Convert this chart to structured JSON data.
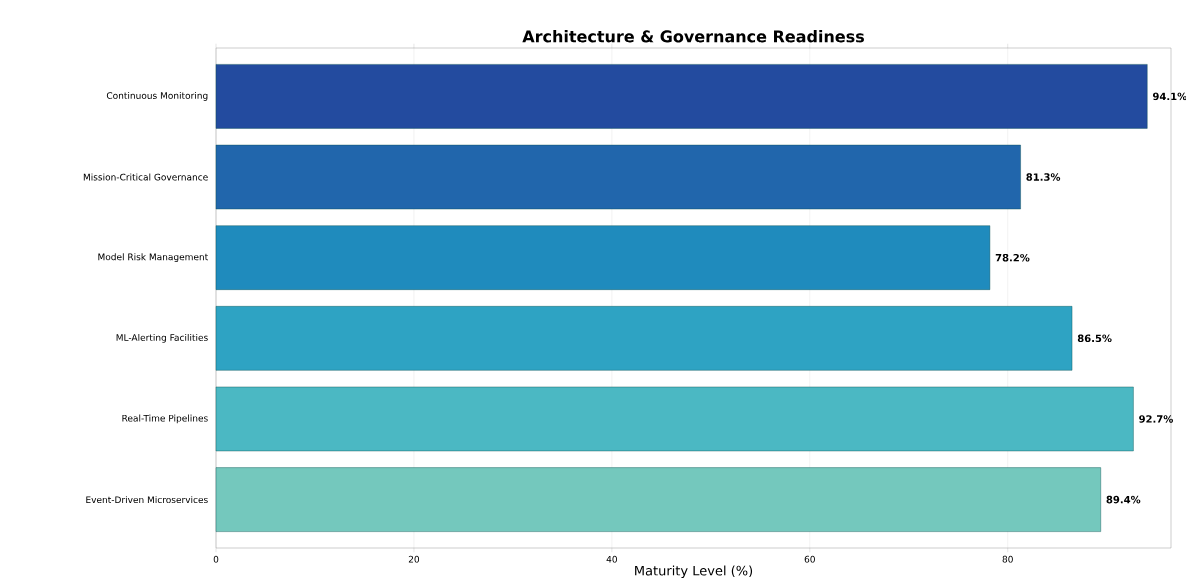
{
  "chart_data": {
    "type": "bar",
    "orientation": "horizontal",
    "title": "Architecture & Governance Readiness",
    "xlabel": "Maturity Level (%)",
    "categories": [
      "Continuous Monitoring",
      "Mission-Critical Governance",
      "Model Risk Management",
      "ML-Alerting Facilities",
      "Real-Time Pipelines",
      "Event-Driven Microservices"
    ],
    "values": [
      94.1,
      81.3,
      78.2,
      86.5,
      92.7,
      89.4
    ],
    "value_labels": [
      "94.1%",
      "81.3%",
      "78.2%",
      "86.5%",
      "92.7%",
      "89.4%"
    ],
    "colors": [
      "#234b9f",
      "#2166ac",
      "#1f8bbd",
      "#2ea3c3",
      "#4bb8c3",
      "#74c8bd"
    ],
    "xlim": [
      0,
      96.5
    ],
    "xticks": [
      0,
      20,
      40,
      60,
      80
    ],
    "grid": "x"
  }
}
